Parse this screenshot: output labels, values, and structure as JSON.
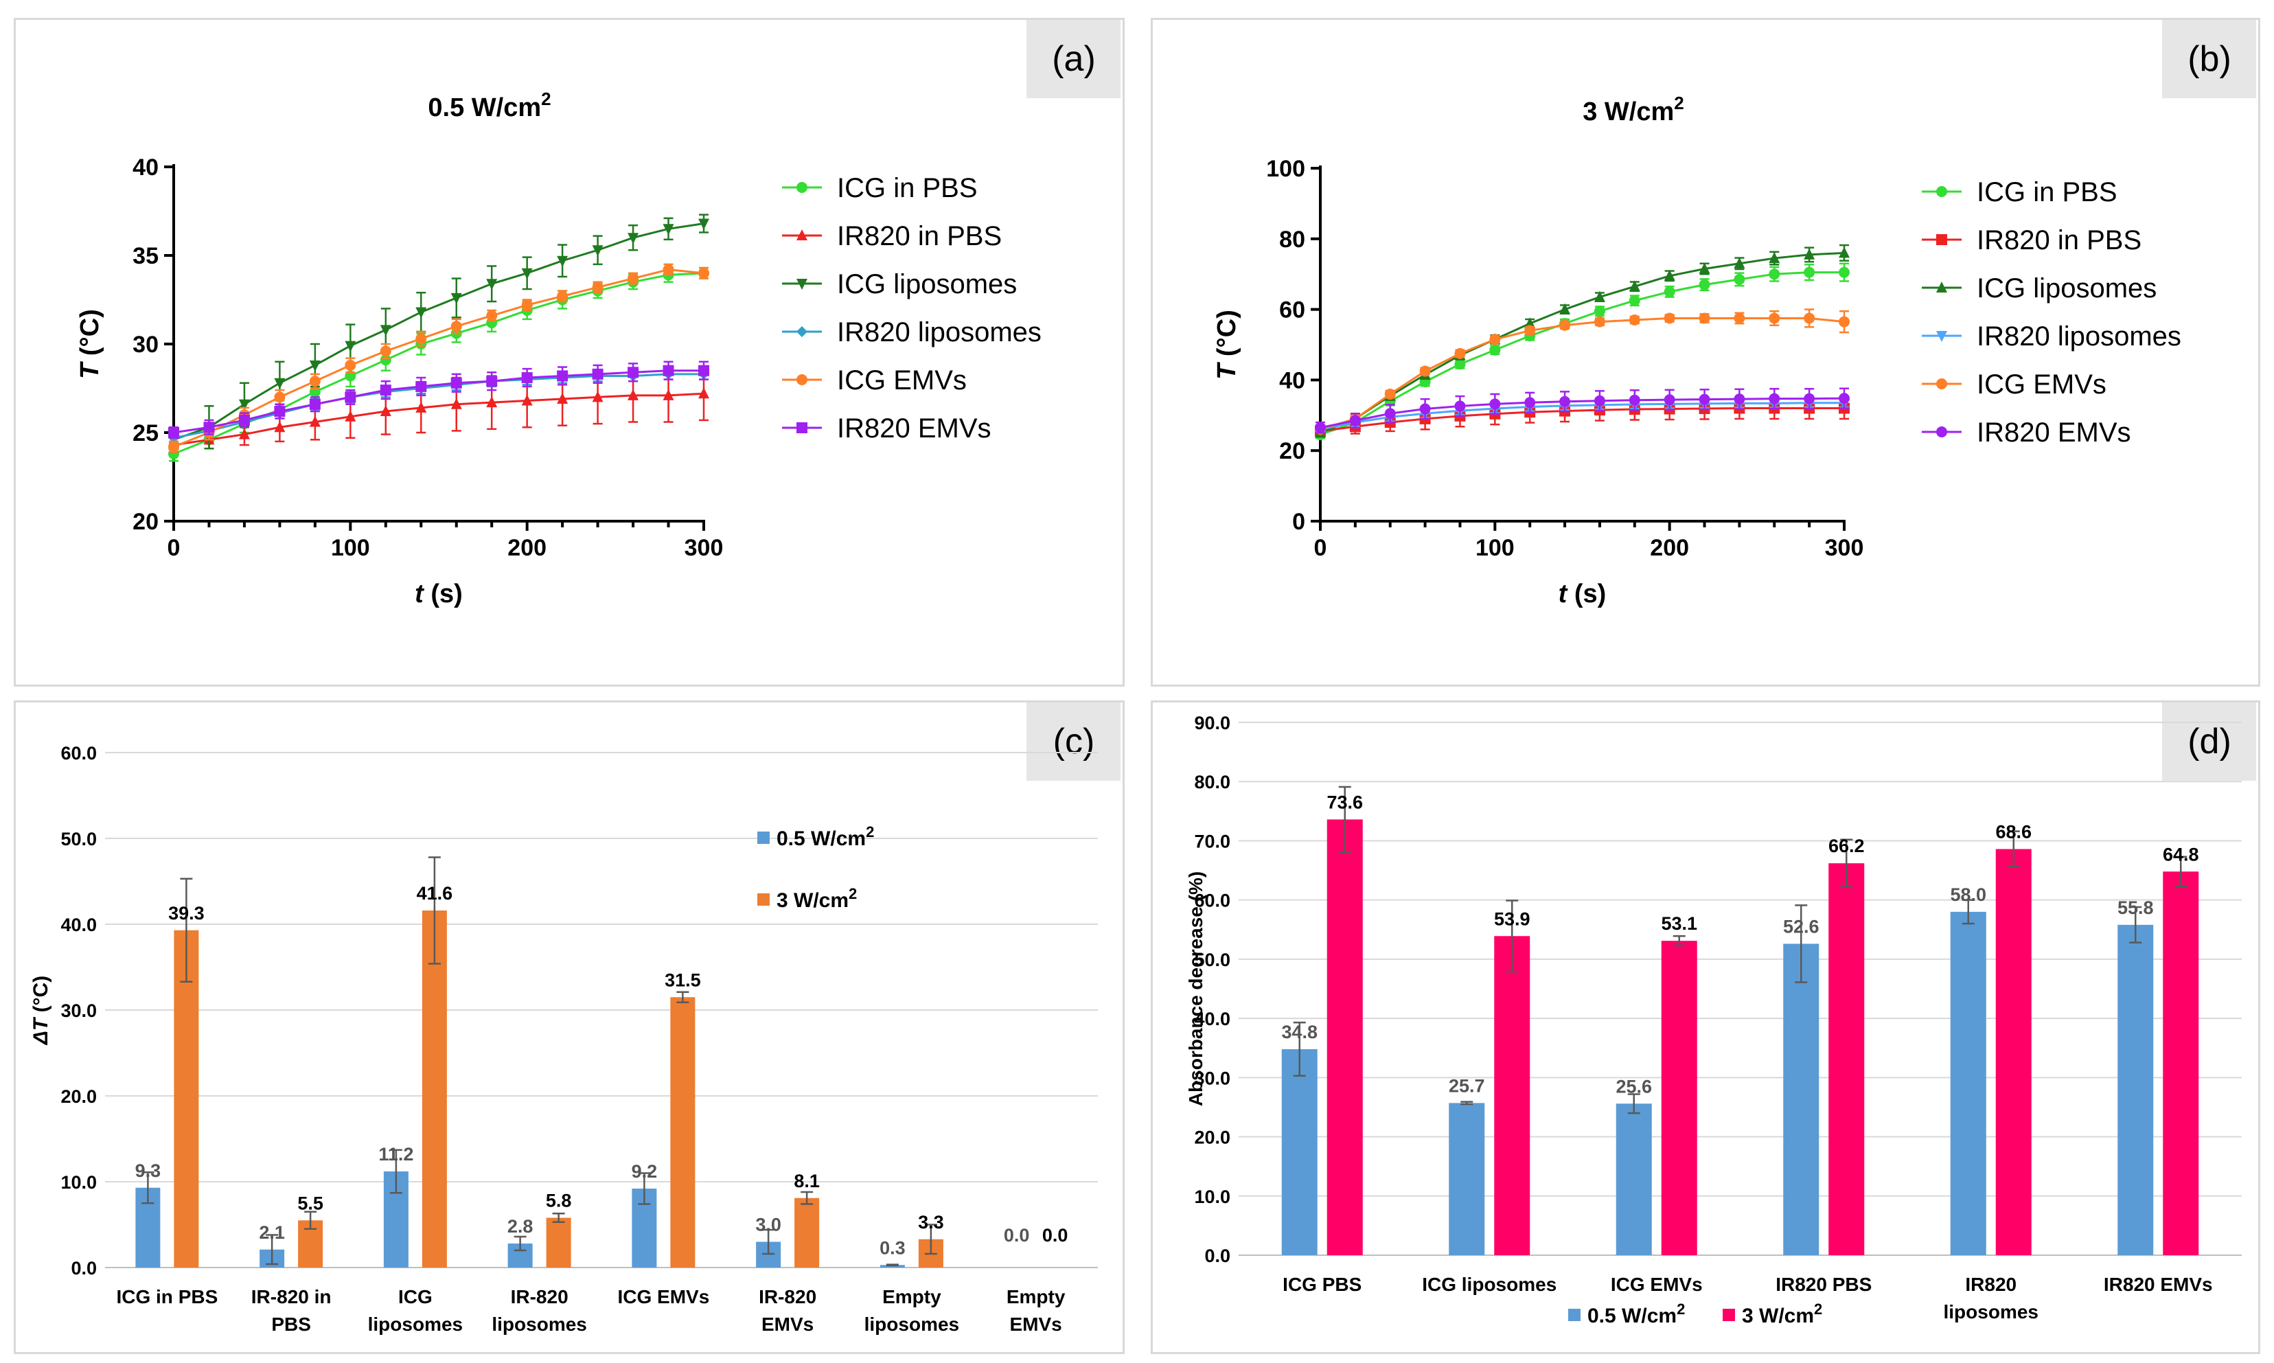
{
  "chart_data": [
    {
      "id": "a",
      "type": "line",
      "panel_label": "(a)",
      "title": "0.5 W/cm",
      "title_sup": "2",
      "xlabel": "t",
      "xlabel_unit": " (s)",
      "ylabel": "T",
      "ylabel_unit": " (°C)",
      "xlim": [
        0,
        300
      ],
      "ylim": [
        20,
        40
      ],
      "xticks": [
        0,
        100,
        200,
        300
      ],
      "yticks": [
        20,
        25,
        30,
        35,
        40
      ],
      "x": [
        0,
        20,
        40,
        60,
        80,
        100,
        120,
        140,
        160,
        180,
        200,
        220,
        240,
        260,
        280,
        300
      ],
      "series": [
        {
          "name": "ICG in PBS",
          "color": "#33dd33",
          "marker": "circle",
          "values": [
            23.8,
            24.6,
            25.5,
            26.3,
            27.3,
            28.2,
            29.1,
            30.0,
            30.6,
            31.2,
            31.9,
            32.5,
            33.0,
            33.5,
            33.9,
            34.0
          ],
          "errors": [
            0.4,
            0.5,
            0.5,
            0.5,
            0.6,
            0.6,
            0.6,
            0.6,
            0.5,
            0.5,
            0.5,
            0.5,
            0.4,
            0.4,
            0.4,
            0.3
          ]
        },
        {
          "name": "IR820 in PBS",
          "color": "#ee2222",
          "marker": "triangle",
          "values": [
            24.3,
            24.6,
            24.9,
            25.3,
            25.6,
            25.9,
            26.2,
            26.4,
            26.6,
            26.7,
            26.8,
            26.9,
            27.0,
            27.1,
            27.1,
            27.2
          ],
          "errors": [
            0.4,
            0.5,
            0.6,
            0.8,
            1.0,
            1.2,
            1.3,
            1.4,
            1.5,
            1.5,
            1.5,
            1.5,
            1.5,
            1.5,
            1.5,
            1.5
          ]
        },
        {
          "name": "ICG liposomes",
          "color": "#1f7a1f",
          "marker": "triangle-down",
          "values": [
            24.6,
            25.3,
            26.6,
            27.8,
            28.8,
            29.9,
            30.8,
            31.8,
            32.6,
            33.4,
            34.0,
            34.7,
            35.3,
            36.0,
            36.5,
            36.8
          ],
          "errors": [
            0.7,
            1.2,
            1.2,
            1.2,
            1.2,
            1.2,
            1.2,
            1.1,
            1.1,
            1.0,
            0.9,
            0.9,
            0.8,
            0.7,
            0.6,
            0.5
          ]
        },
        {
          "name": "IR820 liposomes",
          "color": "#30a0c8",
          "marker": "diamond",
          "values": [
            24.7,
            25.1,
            25.6,
            26.1,
            26.6,
            27.0,
            27.3,
            27.5,
            27.7,
            27.9,
            28.0,
            28.1,
            28.2,
            28.2,
            28.3,
            28.3
          ],
          "errors": [
            0.3,
            0.3,
            0.3,
            0.3,
            0.3,
            0.3,
            0.3,
            0.3,
            0.3,
            0.3,
            0.3,
            0.3,
            0.3,
            0.3,
            0.3,
            0.3
          ]
        },
        {
          "name": "ICG EMVs",
          "color": "#ff7f27",
          "marker": "circle",
          "values": [
            24.2,
            25.0,
            26.0,
            27.0,
            27.9,
            28.8,
            29.6,
            30.3,
            31.0,
            31.6,
            32.2,
            32.7,
            33.2,
            33.7,
            34.2,
            34.0
          ],
          "errors": [
            0.3,
            0.4,
            0.4,
            0.4,
            0.4,
            0.4,
            0.4,
            0.4,
            0.4,
            0.3,
            0.3,
            0.3,
            0.3,
            0.3,
            0.3,
            0.3
          ]
        },
        {
          "name": "IR820 EMVs",
          "color": "#a020f0",
          "marker": "square",
          "values": [
            25.0,
            25.3,
            25.7,
            26.2,
            26.6,
            27.0,
            27.4,
            27.6,
            27.8,
            27.9,
            28.1,
            28.2,
            28.3,
            28.4,
            28.5,
            28.5
          ],
          "errors": [
            0.3,
            0.4,
            0.4,
            0.4,
            0.4,
            0.4,
            0.5,
            0.5,
            0.5,
            0.5,
            0.5,
            0.5,
            0.5,
            0.5,
            0.5,
            0.5
          ]
        }
      ]
    },
    {
      "id": "b",
      "type": "line",
      "panel_label": "(b)",
      "title": "3 W/cm",
      "title_sup": "2",
      "xlabel": "t",
      "xlabel_unit": " (s)",
      "ylabel": "T",
      "ylabel_unit": " (°C)",
      "xlim": [
        0,
        300
      ],
      "ylim": [
        0,
        100
      ],
      "xticks": [
        0,
        100,
        200,
        300
      ],
      "yticks": [
        0,
        20,
        40,
        60,
        80,
        100
      ],
      "x": [
        0,
        20,
        40,
        60,
        80,
        100,
        120,
        140,
        160,
        180,
        200,
        220,
        240,
        260,
        280,
        300
      ],
      "series": [
        {
          "name": "ICG in PBS",
          "color": "#33dd33",
          "marker": "circle",
          "values": [
            24.5,
            28.0,
            34.0,
            39.5,
            44.5,
            48.5,
            52.5,
            56.0,
            59.5,
            62.5,
            65.0,
            67.0,
            68.5,
            70.0,
            70.5,
            70.5
          ],
          "errors": [
            1.0,
            1.2,
            1.2,
            1.2,
            1.2,
            1.2,
            1.2,
            1.2,
            1.3,
            1.4,
            1.5,
            1.6,
            1.8,
            2.0,
            2.2,
            2.5
          ]
        },
        {
          "name": "IR820 in PBS",
          "color": "#ee2222",
          "marker": "square",
          "values": [
            25.5,
            26.8,
            28.0,
            29.0,
            29.8,
            30.4,
            30.9,
            31.2,
            31.5,
            31.7,
            31.8,
            31.9,
            32.0,
            32.0,
            32.0,
            32.0
          ],
          "errors": [
            1.5,
            2.0,
            2.5,
            3.0,
            3.0,
            3.0,
            3.0,
            3.0,
            3.0,
            3.0,
            3.0,
            3.0,
            3.0,
            3.0,
            3.0,
            3.0
          ]
        },
        {
          "name": "ICG liposomes",
          "color": "#1f7a1f",
          "marker": "triangle",
          "values": [
            25.0,
            29.0,
            35.5,
            41.5,
            47.0,
            51.5,
            56.0,
            60.0,
            63.5,
            66.5,
            69.5,
            71.5,
            73.0,
            74.5,
            75.5,
            76.0
          ],
          "errors": [
            1.0,
            1.2,
            1.2,
            1.2,
            1.2,
            1.2,
            1.2,
            1.2,
            1.2,
            1.3,
            1.4,
            1.5,
            1.6,
            1.8,
            2.0,
            2.2
          ]
        },
        {
          "name": "IR820 liposomes",
          "color": "#4da6ff",
          "marker": "triangle-down",
          "values": [
            26.0,
            28.0,
            29.5,
            30.5,
            31.3,
            31.9,
            32.4,
            32.7,
            32.9,
            33.1,
            33.2,
            33.3,
            33.4,
            33.4,
            33.5,
            33.5
          ],
          "errors": [
            1.0,
            1.2,
            1.2,
            1.2,
            1.2,
            1.2,
            1.2,
            1.2,
            1.2,
            1.2,
            1.2,
            1.2,
            1.2,
            1.2,
            1.2,
            1.2
          ]
        },
        {
          "name": "ICG EMVs",
          "color": "#ff7f27",
          "marker": "circle",
          "values": [
            26.0,
            29.0,
            36.0,
            42.5,
            47.5,
            51.5,
            54.0,
            55.5,
            56.5,
            57.0,
            57.5,
            57.5,
            57.5,
            57.5,
            57.5,
            56.5
          ],
          "errors": [
            1.0,
            1.0,
            1.0,
            1.0,
            1.0,
            1.0,
            1.0,
            1.0,
            1.0,
            1.0,
            1.0,
            1.2,
            1.5,
            2.0,
            2.5,
            3.0
          ]
        },
        {
          "name": "IR820 EMVs",
          "color": "#a020f0",
          "marker": "circle",
          "values": [
            26.5,
            28.5,
            30.5,
            31.8,
            32.6,
            33.2,
            33.6,
            33.9,
            34.1,
            34.3,
            34.4,
            34.5,
            34.6,
            34.7,
            34.7,
            34.8
          ],
          "errors": [
            1.5,
            2.0,
            2.5,
            2.8,
            2.8,
            2.8,
            2.8,
            2.8,
            2.8,
            2.8,
            2.8,
            2.8,
            2.8,
            2.8,
            2.8,
            2.8
          ]
        }
      ]
    },
    {
      "id": "c",
      "type": "bar",
      "panel_label": "(c)",
      "ylabel": "ΔT",
      "ylabel_unit": " (°C)",
      "ylim": [
        0,
        60
      ],
      "yticks": [
        "0.0",
        "10.0",
        "20.0",
        "30.0",
        "40.0",
        "50.0",
        "60.0"
      ],
      "categories": [
        [
          "ICG in PBS"
        ],
        [
          "IR-820 in",
          "PBS"
        ],
        [
          "ICG",
          "liposomes"
        ],
        [
          "IR-820",
          "liposomes"
        ],
        [
          "ICG EMVs"
        ],
        [
          "IR-820",
          "EMVs"
        ],
        [
          "Empty",
          "liposomes"
        ],
        [
          "Empty",
          "EMVs"
        ]
      ],
      "series": [
        {
          "name": "0.5 W/cm",
          "name_sup": "2",
          "color": "#5b9bd5",
          "label_color": "#555555",
          "values": [
            9.3,
            2.1,
            11.2,
            2.8,
            9.2,
            3.0,
            0.3,
            0.0
          ],
          "labels": [
            "9.3",
            "2.1",
            "11.2",
            "2.8",
            "9.2",
            "3.0",
            "0.3",
            "0.0"
          ],
          "errors": [
            1.8,
            1.7,
            2.5,
            0.8,
            1.8,
            1.4,
            0.05,
            0
          ]
        },
        {
          "name": "3 W/cm",
          "name_sup": "2",
          "color": "#ed7d31",
          "label_color": "#000000",
          "values": [
            39.3,
            5.5,
            41.6,
            5.8,
            31.5,
            8.1,
            3.3,
            0.0
          ],
          "labels": [
            "39.3",
            "5.5",
            "41.6",
            "5.8",
            "31.5",
            "8.1",
            "3.3",
            "0.0"
          ],
          "errors": [
            6.0,
            1.0,
            6.2,
            0.5,
            0.6,
            0.7,
            1.7,
            0
          ]
        }
      ],
      "legend_position": "right"
    },
    {
      "id": "d",
      "type": "bar",
      "panel_label": "(d)",
      "ylabel": "Absorbance decrease (%)",
      "ylim": [
        0,
        90
      ],
      "yticks": [
        "0.0",
        "10.0",
        "20.0",
        "30.0",
        "40.0",
        "50.0",
        "60.0",
        "70.0",
        "80.0",
        "90.0"
      ],
      "categories": [
        [
          "ICG PBS"
        ],
        [
          "ICG liposomes"
        ],
        [
          "ICG EMVs"
        ],
        [
          "IR820 PBS"
        ],
        [
          "IR820",
          "liposomes"
        ],
        [
          "IR820 EMVs"
        ]
      ],
      "series": [
        {
          "name": "0.5 W/cm",
          "name_sup": "2",
          "color": "#5b9bd5",
          "label_color": "#555555",
          "values": [
            34.8,
            25.7,
            25.6,
            52.6,
            58.0,
            55.8
          ],
          "labels": [
            "34.8",
            "25.7",
            "25.6",
            "52.6",
            "58.0",
            "55.8"
          ],
          "errors": [
            4.5,
            0.2,
            1.6,
            6.5,
            2.0,
            3.0
          ]
        },
        {
          "name": "3 W/cm",
          "name_sup": "2",
          "color": "#ff0066",
          "label_color": "#000000",
          "values": [
            73.6,
            53.9,
            53.1,
            66.2,
            68.6,
            64.8
          ],
          "labels": [
            "73.6",
            "53.9",
            "53.1",
            "66.2",
            "68.6",
            "64.8"
          ],
          "errors": [
            5.5,
            6.0,
            0.8,
            4.0,
            3.0,
            2.5
          ]
        }
      ],
      "legend_position": "bottom"
    }
  ]
}
